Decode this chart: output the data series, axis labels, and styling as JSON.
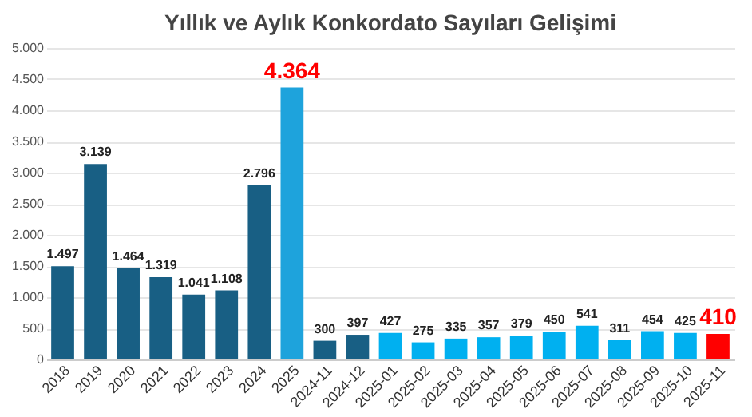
{
  "chart_data": {
    "type": "bar",
    "title": "Yıllık ve Aylık Konkordato Sayıları Gelişimi",
    "categories": [
      "2018",
      "2019",
      "2020",
      "2021",
      "2022",
      "2023",
      "2024",
      "2025",
      "2024-11",
      "2024-12",
      "2025-01",
      "2025-02",
      "2025-03",
      "2025-04",
      "2025-05",
      "2025-06",
      "2025-07",
      "2025-08",
      "2025-09",
      "2025-10",
      "2025-11"
    ],
    "values": [
      1497,
      3139,
      1464,
      1319,
      1041,
      1108,
      2796,
      4364,
      300,
      397,
      427,
      275,
      335,
      357,
      379,
      450,
      541,
      311,
      454,
      425,
      410
    ],
    "colors": [
      "#185f84",
      "#185f84",
      "#185f84",
      "#185f84",
      "#185f84",
      "#185f84",
      "#185f84",
      "#1ea3dc",
      "#185f84",
      "#185f84",
      "#00b0f0",
      "#00b0f0",
      "#00b0f0",
      "#00b0f0",
      "#00b0f0",
      "#00b0f0",
      "#00b0f0",
      "#00b0f0",
      "#00b0f0",
      "#00b0f0",
      "#ff0000"
    ],
    "value_labels": [
      "1.497",
      "3.139",
      "1.464",
      "1.319",
      "1.041",
      "1.108",
      "2.796",
      null,
      "300",
      "397",
      "427",
      "275",
      "335",
      "357",
      "379",
      "450",
      "541",
      "311",
      "454",
      "425",
      null
    ],
    "annotations": [
      {
        "text": "4.364",
        "x": "2025",
        "y": 4364
      },
      {
        "text": "410",
        "x": "2025-11",
        "y": 410
      }
    ],
    "ylim": [
      0,
      5000
    ],
    "yticks": [
      0,
      500,
      {
        "value": 1000,
        "label": "1.000"
      },
      {
        "value": 1500,
        "label": "1.500"
      },
      {
        "value": 2000,
        "label": "2.000"
      },
      {
        "value": 2500,
        "label": "2.500"
      },
      {
        "value": 3000,
        "label": "3.000"
      },
      {
        "value": 3500,
        "label": "3.500"
      },
      {
        "value": 4000,
        "label": "4.000"
      },
      {
        "value": 4500,
        "label": "4.500"
      },
      {
        "value": 5000,
        "label": "5.000"
      }
    ],
    "grid": "y"
  }
}
